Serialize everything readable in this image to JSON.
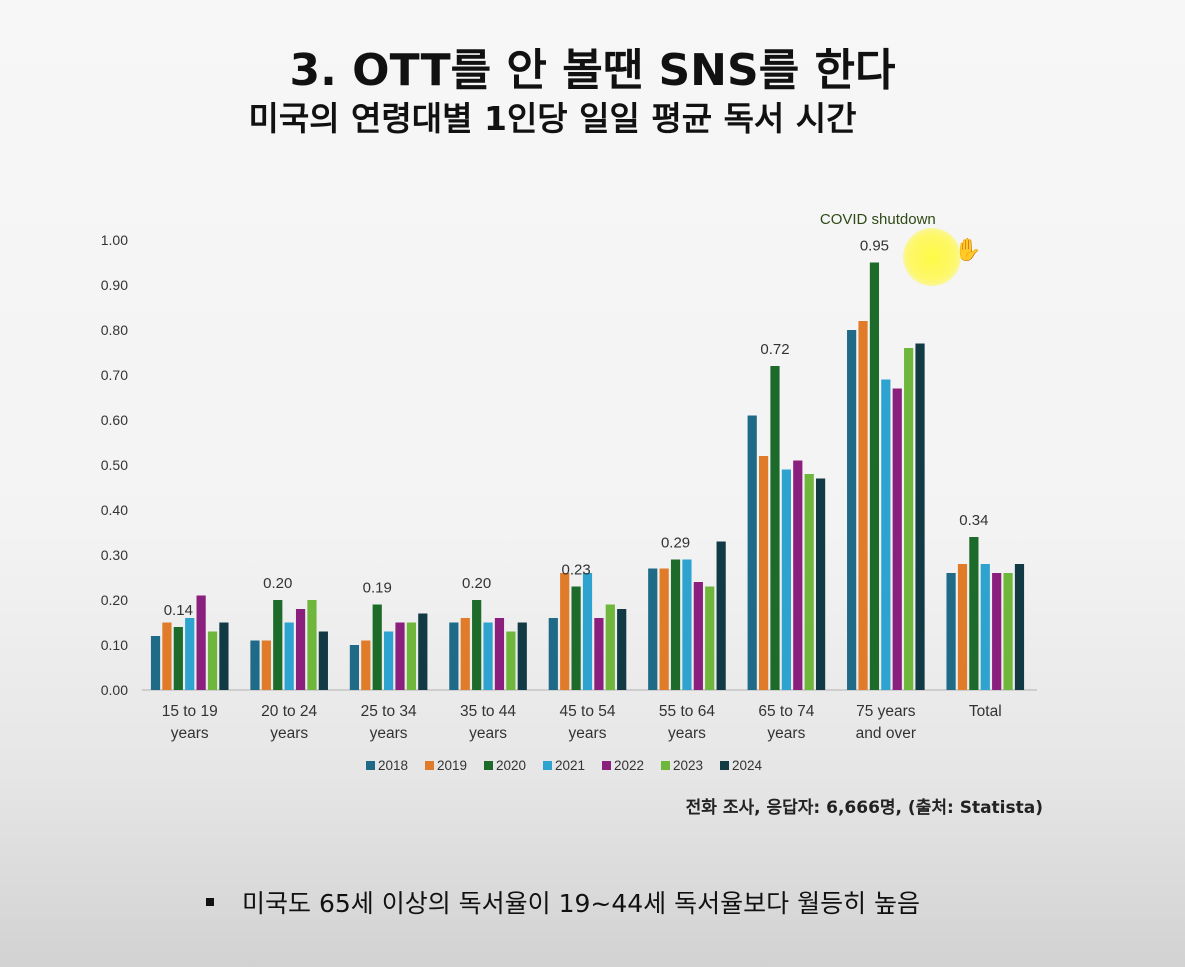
{
  "title": "3. OTT를 안 볼땐 SNS를 한다",
  "subtitle": "미국의 연령대별 1인당 일일 평균 독서 시간",
  "source_note": "전화 조사, 응답자: 6,666명, (출처: Statista)",
  "bullet_text": "미국도 65세 이상의 독서율이 19~44세 독서율보다 월등히 높음",
  "chart_data": {
    "type": "bar",
    "title": "",
    "categories": [
      [
        "15 to 19",
        "years"
      ],
      [
        "20 to 24",
        "years"
      ],
      [
        "25 to 34",
        "years"
      ],
      [
        "35 to 44",
        "years"
      ],
      [
        "45 to 54",
        "years"
      ],
      [
        "55 to 64",
        "years"
      ],
      [
        "65 to 74",
        "years"
      ],
      [
        "75 years",
        "and over"
      ],
      [
        "Total"
      ]
    ],
    "ylim": [
      0,
      1.0
    ],
    "yticks": [
      "0.00",
      "0.10",
      "0.20",
      "0.30",
      "0.40",
      "0.50",
      "0.60",
      "0.70",
      "0.80",
      "0.90",
      "1.00"
    ],
    "series": [
      {
        "name": "2018",
        "color": "#1f6a86",
        "values": [
          0.12,
          0.11,
          0.1,
          0.15,
          0.16,
          0.27,
          0.61,
          0.8,
          0.26
        ]
      },
      {
        "name": "2019",
        "color": "#e07b2a",
        "values": [
          0.15,
          0.11,
          0.11,
          0.16,
          0.26,
          0.27,
          0.52,
          0.82,
          0.28
        ]
      },
      {
        "name": "2020",
        "color": "#1d6b2a",
        "values": [
          0.14,
          0.2,
          0.19,
          0.2,
          0.23,
          0.29,
          0.72,
          0.95,
          0.34
        ]
      },
      {
        "name": "2021",
        "color": "#2ea3cf",
        "values": [
          0.16,
          0.15,
          0.13,
          0.15,
          0.26,
          0.29,
          0.49,
          0.69,
          0.28
        ]
      },
      {
        "name": "2022",
        "color": "#8a1f7e",
        "values": [
          0.21,
          0.18,
          0.15,
          0.16,
          0.16,
          0.24,
          0.51,
          0.67,
          0.26
        ]
      },
      {
        "name": "2023",
        "color": "#6fb63c",
        "values": [
          0.13,
          0.2,
          0.15,
          0.13,
          0.19,
          0.23,
          0.48,
          0.76,
          0.26
        ]
      },
      {
        "name": "2024",
        "color": "#123a44",
        "values": [
          0.15,
          0.13,
          0.17,
          0.15,
          0.18,
          0.33,
          0.47,
          0.77,
          0.28
        ]
      }
    ],
    "data_labels": [
      {
        "category_index": 0,
        "series": "2020",
        "text": "0.14"
      },
      {
        "category_index": 1,
        "series": "2020",
        "text": "0.20"
      },
      {
        "category_index": 2,
        "series": "2020",
        "text": "0.19"
      },
      {
        "category_index": 3,
        "series": "2020",
        "text": "0.20"
      },
      {
        "category_index": 4,
        "series": "2020",
        "text": "0.23"
      },
      {
        "category_index": 5,
        "series": "2020",
        "text": "0.29"
      },
      {
        "category_index": 6,
        "series": "2020",
        "text": "0.72"
      },
      {
        "category_index": 7,
        "series": "2020",
        "text": "0.95"
      },
      {
        "category_index": 8,
        "series": "2020",
        "text": "0.34"
      }
    ],
    "annotation": {
      "text": "COVID shutdown",
      "color": "#2f4a16"
    },
    "legend_position": "bottom"
  }
}
